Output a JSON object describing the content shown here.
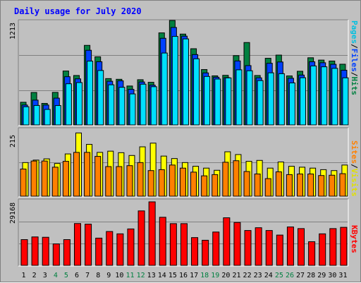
{
  "title": "Daily usage for July 2020",
  "colors": {
    "hits": "#008040",
    "files": "#0040ff",
    "pages": "#00e0ff",
    "visits": "#ffff00",
    "sites": "#ff8000",
    "kbytes": "#ff0000",
    "title": "#0000ff",
    "weekend_label": "#008040"
  },
  "chart_data": [
    {
      "type": "bar",
      "categories": [
        "1",
        "2",
        "3",
        "4",
        "5",
        "6",
        "7",
        "8",
        "9",
        "10",
        "11",
        "12",
        "13",
        "14",
        "15",
        "16",
        "17",
        "18",
        "19",
        "20",
        "21",
        "22",
        "23",
        "24",
        "25",
        "26",
        "27",
        "28",
        "29",
        "30",
        "31"
      ],
      "weekend_days": [
        "4",
        "5",
        "11",
        "12",
        "18",
        "19",
        "25",
        "26"
      ],
      "ymax_label": "1213",
      "ylim": [
        0,
        1213
      ],
      "series": [
        {
          "name": "Hits",
          "values": [
            263,
            377,
            250,
            378,
            626,
            574,
            924,
            791,
            538,
            530,
            452,
            525,
            495,
            1069,
            1213,
            1055,
            885,
            643,
            570,
            576,
            805,
            957,
            574,
            774,
            811,
            569,
            623,
            780,
            753,
            742,
            705
          ]
        },
        {
          "name": "Files",
          "values": [
            231,
            288,
            231,
            311,
            560,
            535,
            867,
            734,
            507,
            512,
            413,
            499,
            462,
            1006,
            1132,
            1031,
            817,
            604,
            554,
            549,
            743,
            689,
            547,
            716,
            731,
            542,
            579,
            733,
            722,
            704,
            635
          ]
        },
        {
          "name": "Pages",
          "values": [
            211,
            226,
            180,
            225,
            478,
            492,
            741,
            632,
            466,
            437,
            360,
            473,
            444,
            835,
            1028,
            999,
            768,
            563,
            533,
            546,
            640,
            629,
            515,
            605,
            595,
            488,
            548,
            685,
            675,
            657,
            547
          ]
        }
      ],
      "legend": [
        "Pages",
        "Files",
        "Hits"
      ]
    },
    {
      "type": "bar",
      "categories": [
        "1",
        "2",
        "3",
        "4",
        "5",
        "6",
        "7",
        "8",
        "9",
        "10",
        "11",
        "12",
        "13",
        "14",
        "15",
        "16",
        "17",
        "18",
        "19",
        "20",
        "21",
        "22",
        "23",
        "24",
        "25",
        "26",
        "27",
        "28",
        "29",
        "30",
        "31"
      ],
      "ymax_label": "215",
      "ylim": [
        0,
        215
      ],
      "series": [
        {
          "name": "Visits",
          "values": [
            109,
            117,
            121,
            106,
            137,
            205,
            168,
            142,
            146,
            141,
            132,
            160,
            172,
            130,
            122,
            109,
            97,
            91,
            84,
            144,
            135,
            113,
            116,
            91,
            111,
            97,
            94,
            91,
            86,
            83,
            101
          ]
        },
        {
          "name": "Sites",
          "values": [
            88,
            114,
            114,
            94,
            113,
            142,
            142,
            129,
            96,
            96,
            99,
            109,
            83,
            86,
            101,
            91,
            78,
            66,
            70,
            110,
            115,
            80,
            72,
            57,
            79,
            70,
            72,
            72,
            67,
            68,
            73
          ]
        }
      ],
      "legend": [
        "Sites",
        "Visits"
      ]
    },
    {
      "type": "bar",
      "categories": [
        "1",
        "2",
        "3",
        "4",
        "5",
        "6",
        "7",
        "8",
        "9",
        "10",
        "11",
        "12",
        "13",
        "14",
        "15",
        "16",
        "17",
        "18",
        "19",
        "20",
        "21",
        "22",
        "23",
        "24",
        "25",
        "26",
        "27",
        "28",
        "29",
        "30",
        "31"
      ],
      "ymax_label": "29168",
      "ylim": [
        0,
        29168
      ],
      "series": [
        {
          "name": "KBytes",
          "values": [
            11823,
            13056,
            12900,
            9849,
            11823,
            19213,
            18924,
            12512,
            15550,
            14478,
            16730,
            25016,
            29168,
            22084,
            19165,
            19165,
            12751,
            11536,
            15311,
            21853,
            19694,
            16008,
            17286,
            16008,
            13912,
            17634,
            16889,
            10861,
            14478,
            16889,
            17464
          ]
        }
      ],
      "legend": [
        "KBytes"
      ]
    }
  ]
}
